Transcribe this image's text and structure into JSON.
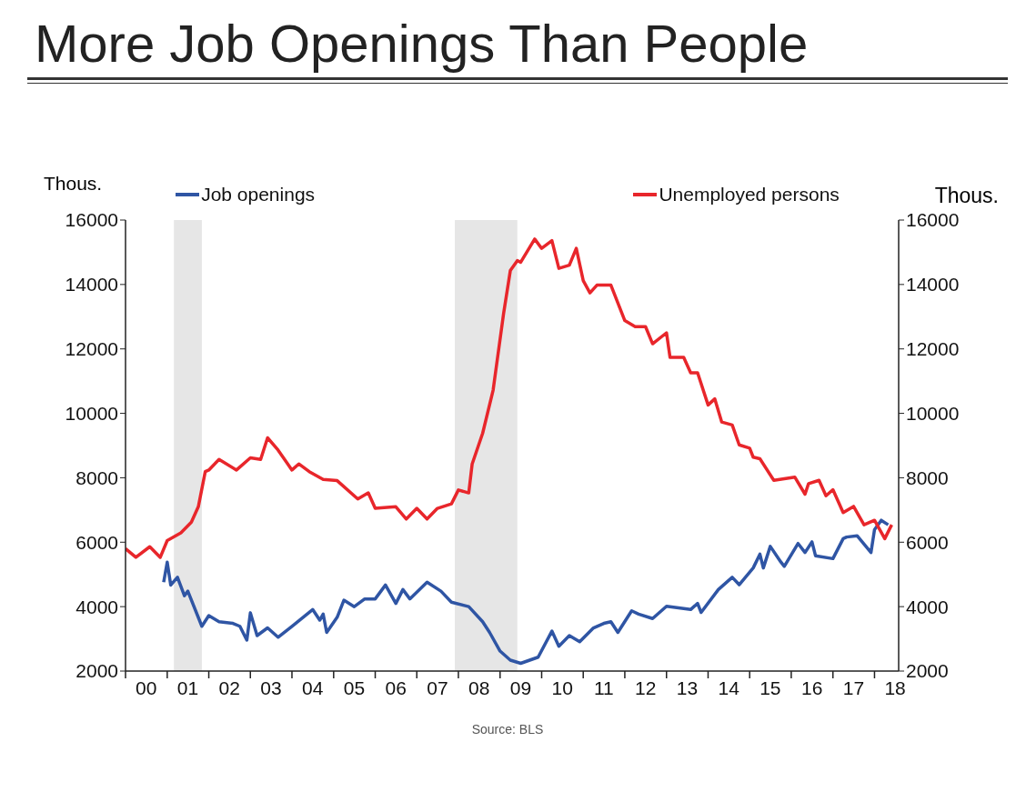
{
  "chart_data": {
    "type": "line",
    "title": "More Job Openings Than People",
    "ylabel": "Thous.",
    "y2label": "Thous.",
    "annotations": [
      "Source: BLS"
    ],
    "xlim": [
      "2000-01",
      "2018-08"
    ],
    "xticks": [
      {
        "value": "2000",
        "label": null
      },
      {
        "value": "2000-07",
        "label": "00"
      },
      {
        "value": "2001",
        "label": null
      },
      {
        "value": "2001-07",
        "label": "01"
      },
      {
        "value": "2002",
        "label": null
      },
      {
        "value": "2002-07",
        "label": "02"
      },
      {
        "value": "2003",
        "label": null
      },
      {
        "value": "2003-07",
        "label": "03"
      },
      {
        "value": "2004",
        "label": null
      },
      {
        "value": "2004-07",
        "label": "04"
      },
      {
        "value": "2005",
        "label": null
      },
      {
        "value": "2005-07",
        "label": "05"
      },
      {
        "value": "2006",
        "label": null
      },
      {
        "value": "2006-07",
        "label": "06"
      },
      {
        "value": "2007",
        "label": null
      },
      {
        "value": "2007-07",
        "label": "07"
      },
      {
        "value": "2008",
        "label": null
      },
      {
        "value": "2008-07",
        "label": "08"
      },
      {
        "value": "2009",
        "label": null
      },
      {
        "value": "2009-07",
        "label": "09"
      },
      {
        "value": "2010",
        "label": null
      },
      {
        "value": "2010-07",
        "label": "10"
      },
      {
        "value": "2011",
        "label": null
      },
      {
        "value": "2011-07",
        "label": "11"
      },
      {
        "value": "2012",
        "label": null
      },
      {
        "value": "2012-07",
        "label": "12"
      },
      {
        "value": "2013",
        "label": null
      },
      {
        "value": "2013-07",
        "label": "13"
      },
      {
        "value": "2014",
        "label": null
      },
      {
        "value": "2014-07",
        "label": "14"
      },
      {
        "value": "2015",
        "label": null
      },
      {
        "value": "2015-07",
        "label": "15"
      },
      {
        "value": "2016",
        "label": null
      },
      {
        "value": "2016-07",
        "label": "16"
      },
      {
        "value": "2017",
        "label": null
      },
      {
        "value": "2017-07",
        "label": "17"
      },
      {
        "value": "2018",
        "label": null
      },
      {
        "value": "2018-07",
        "label": "18"
      }
    ],
    "ylim": [
      2000,
      16000
    ],
    "yticks": [
      2000,
      4000,
      6000,
      8000,
      10000,
      12000,
      14000,
      16000
    ],
    "y2lim": [
      2000,
      16000
    ],
    "y2ticks": [
      2000,
      4000,
      6000,
      8000,
      10000,
      12000,
      14000,
      16000
    ],
    "grid": false,
    "legend": "top",
    "marker": "none",
    "line_style": "solid",
    "bands": [
      {
        "axis": "x",
        "from": "2001-03",
        "to": "2001-11",
        "color": "#e6e6e6"
      },
      {
        "axis": "x",
        "from": "2007-12",
        "to": "2009-06",
        "color": "#e6e6e6"
      }
    ],
    "series": [
      {
        "name": "Job openings",
        "color": "#2f55a4",
        "x": [
          "2000-12",
          "2001-01",
          "2001-02",
          "2001-04",
          "2001-06",
          "2001-07",
          "2001-11",
          "2002-01",
          "2002-04",
          "2002-08",
          "2002-10",
          "2002-12",
          "2003-01",
          "2003-03",
          "2003-06",
          "2003-09",
          "2004-01",
          "2004-07",
          "2004-09",
          "2004-10",
          "2004-11",
          "2005-02",
          "2005-04",
          "2005-07",
          "2005-10",
          "2006-01",
          "2006-04",
          "2006-07",
          "2006-09",
          "2006-11",
          "2007-04",
          "2007-08",
          "2007-11",
          "2008-04",
          "2008-08",
          "2008-10",
          "2009-01",
          "2009-04",
          "2009-07",
          "2009-12",
          "2010-04",
          "2010-06",
          "2010-09",
          "2010-12",
          "2011-04",
          "2011-07",
          "2011-09",
          "2011-11",
          "2012-03",
          "2012-05",
          "2012-09",
          "2013-01",
          "2013-08",
          "2013-10",
          "2013-11",
          "2014-04",
          "2014-08",
          "2014-10",
          "2015-02",
          "2015-04",
          "2015-05",
          "2015-07",
          "2015-10",
          "2015-11",
          "2016-03",
          "2016-05",
          "2016-07",
          "2016-08",
          "2017-01",
          "2017-04",
          "2017-05",
          "2017-08",
          "2017-12",
          "2018-01",
          "2018-03",
          "2018-05"
        ],
        "values": [
          4760,
          5380,
          4670,
          4910,
          4340,
          4480,
          3390,
          3720,
          3530,
          3480,
          3390,
          2960,
          3810,
          3100,
          3340,
          3050,
          3390,
          3910,
          3580,
          3770,
          3200,
          3670,
          4200,
          4000,
          4240,
          4240,
          4670,
          4100,
          4530,
          4240,
          4760,
          4480,
          4140,
          4000,
          3530,
          3200,
          2620,
          2340,
          2240,
          2430,
          3240,
          2770,
          3100,
          2910,
          3340,
          3480,
          3530,
          3200,
          3870,
          3770,
          3630,
          4010,
          3910,
          4100,
          3820,
          4530,
          4910,
          4680,
          5200,
          5630,
          5200,
          5870,
          5390,
          5250,
          5960,
          5680,
          6010,
          5580,
          5490,
          6110,
          6160,
          6200,
          5680,
          6390,
          6680,
          6540
        ]
      },
      {
        "name": "Unemployed persons",
        "color": "#e8262b",
        "x": [
          "2000-01",
          "2000-04",
          "2000-08",
          "2000-11",
          "2001-01",
          "2001-05",
          "2001-08",
          "2001-10",
          "2001-12",
          "2002-01",
          "2002-04",
          "2002-09",
          "2003-01",
          "2003-04",
          "2003-06",
          "2003-09",
          "2004-01",
          "2004-03",
          "2004-06",
          "2004-10",
          "2005-02",
          "2005-08",
          "2005-11",
          "2006-01",
          "2006-07",
          "2006-10",
          "2007-01",
          "2007-04",
          "2007-07",
          "2007-11",
          "2008-01",
          "2008-04",
          "2008-05",
          "2008-08",
          "2008-11",
          "2009-02",
          "2009-04",
          "2009-06",
          "2009-07",
          "2009-11",
          "2010-01",
          "2010-04",
          "2010-06",
          "2010-09",
          "2010-11",
          "2011-01",
          "2011-03",
          "2011-05",
          "2011-09",
          "2012-01",
          "2012-04",
          "2012-07",
          "2012-09",
          "2013-01",
          "2013-02",
          "2013-06",
          "2013-08",
          "2013-10",
          "2014-01",
          "2014-03",
          "2014-05",
          "2014-08",
          "2014-10",
          "2015-01",
          "2015-02",
          "2015-04",
          "2015-08",
          "2015-11",
          "2016-02",
          "2016-05",
          "2016-06",
          "2016-09",
          "2016-11",
          "2017-01",
          "2017-04",
          "2017-07",
          "2017-10",
          "2018-01",
          "2018-04",
          "2018-06"
        ],
        "values": [
          5800,
          5530,
          5860,
          5530,
          6050,
          6290,
          6620,
          7100,
          8190,
          8240,
          8570,
          8240,
          8620,
          8570,
          9240,
          8860,
          8240,
          8430,
          8190,
          7950,
          7910,
          7340,
          7530,
          7050,
          7100,
          6720,
          7050,
          6720,
          7050,
          7190,
          7620,
          7530,
          8430,
          9380,
          10720,
          13100,
          14430,
          14740,
          14690,
          15410,
          15120,
          15360,
          14500,
          14600,
          15120,
          14120,
          13740,
          13980,
          13980,
          12880,
          12690,
          12690,
          12160,
          12500,
          11740,
          11740,
          11260,
          11260,
          10260,
          10450,
          9730,
          9640,
          9020,
          8920,
          8640,
          8590,
          7920,
          7970,
          8020,
          7490,
          7820,
          7920,
          7440,
          7630,
          6920,
          7110,
          6540,
          6680,
          6110,
          6540
        ]
      }
    ]
  }
}
